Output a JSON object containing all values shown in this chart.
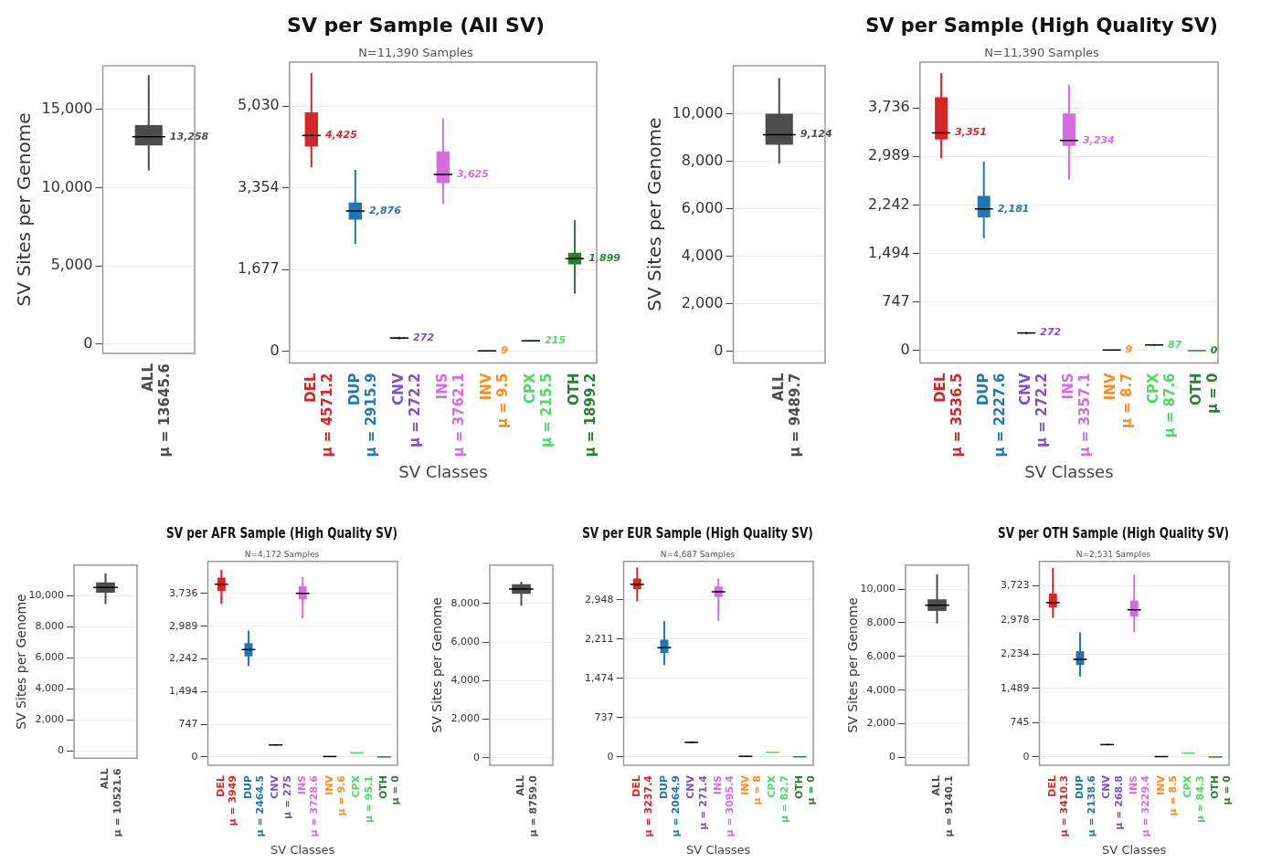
{
  "chart_data": [
    {
      "type": "box",
      "ylabel": "SV Sites per Genome",
      "categories": [
        "ALL"
      ],
      "colors": [
        "#4d4d4d"
      ],
      "grid": "y",
      "boxes": [
        {
          "low": 11100,
          "q1": 12700,
          "median": 13258,
          "q3": 14000,
          "high": 17200
        }
      ],
      "value_labels": [
        "13,258"
      ],
      "annotations": [
        "μ = 13645.6"
      ],
      "ylim": [
        -600,
        17800
      ],
      "yticks": [
        0,
        {
          "value": 5000,
          "label": "5,000"
        },
        {
          "value": 10000,
          "label": "10,000"
        },
        {
          "value": 15000,
          "label": "15,000"
        }
      ]
    },
    {
      "type": "box",
      "title": "SV per Sample (All SV)",
      "subtitle": "N=11,390 Samples",
      "xlabel": "SV Classes",
      "grid": "y",
      "categories": [
        "DEL",
        "DUP",
        "CNV",
        "INS",
        "INV",
        "CPX",
        "OTH"
      ],
      "colors": [
        "#d62728",
        "#1f77b4",
        "#7b52c9",
        "#d46ee0",
        "#ff8c1a",
        "#4cd964",
        "#2e7d32"
      ],
      "boxes": [
        {
          "low": 3770,
          "q1": 4200,
          "median": 4425,
          "q3": 4900,
          "high": 5710
        },
        {
          "low": 2200,
          "q1": 2700,
          "median": 2876,
          "q3": 3050,
          "high": 3720
        },
        {
          "low": 240,
          "q1": 260,
          "median": 272,
          "q3": 285,
          "high": 300
        },
        {
          "low": 3020,
          "q1": 3450,
          "median": 3625,
          "q3": 4100,
          "high": 4770
        },
        {
          "low": 0,
          "q1": 5,
          "median": 9,
          "q3": 14,
          "high": 20
        },
        {
          "low": 200,
          "q1": 210,
          "median": 215,
          "q3": 222,
          "high": 230
        },
        {
          "low": 1180,
          "q1": 1780,
          "median": 1899,
          "q3": 2020,
          "high": 2690
        }
      ],
      "value_labels": [
        "4,425",
        "2,876",
        "272",
        "3,625",
        "9",
        "215",
        "1,899"
      ],
      "annotations": [
        "μ = 4571.2",
        "μ = 2915.9",
        "μ = 272.2",
        "μ = 3762.1",
        "μ = 9.5",
        "μ = 215.5",
        "μ = 1899.2"
      ],
      "ylim": [
        -240,
        5930
      ],
      "yticks": [
        0,
        {
          "value": 1677,
          "label": "1,677"
        },
        {
          "value": 3354,
          "label": "3,354"
        },
        {
          "value": 5030,
          "label": "5,030"
        }
      ]
    },
    {
      "type": "box",
      "ylabel": "SV Sites per Genome",
      "categories": [
        "ALL"
      ],
      "colors": [
        "#4d4d4d"
      ],
      "grid": "y",
      "boxes": [
        {
          "low": 7900,
          "q1": 8700,
          "median": 9124,
          "q3": 10000,
          "high": 11500
        }
      ],
      "value_labels": [
        "9,124"
      ],
      "annotations": [
        "μ = 9489.7"
      ],
      "ylim": [
        -480,
        12020
      ],
      "yticks": [
        0,
        {
          "value": 2000,
          "label": "2,000"
        },
        {
          "value": 4000,
          "label": "4,000"
        },
        {
          "value": 6000,
          "label": "6,000"
        },
        {
          "value": 8000,
          "label": "8,000"
        },
        {
          "value": 10000,
          "label": "10,000"
        }
      ]
    },
    {
      "type": "box",
      "title": "SV per Sample (High Quality SV)",
      "subtitle": "N=11,390 Samples",
      "xlabel": "SV Classes",
      "grid": "y",
      "categories": [
        "DEL",
        "DUP",
        "CNV",
        "INS",
        "INV",
        "CPX",
        "OTH"
      ],
      "colors": [
        "#d62728",
        "#1f77b4",
        "#7b52c9",
        "#d46ee0",
        "#ff8c1a",
        "#4cd964",
        "#2e7d32"
      ],
      "boxes": [
        {
          "low": 2960,
          "q1": 3250,
          "median": 3351,
          "q3": 3900,
          "high": 4270
        },
        {
          "low": 1730,
          "q1": 2050,
          "median": 2181,
          "q3": 2380,
          "high": 2910
        },
        {
          "low": 250,
          "q1": 262,
          "median": 272,
          "q3": 282,
          "high": 290
        },
        {
          "low": 2630,
          "q1": 3150,
          "median": 3234,
          "q3": 3650,
          "high": 4090
        },
        {
          "low": 0,
          "q1": 5,
          "median": 9,
          "q3": 14,
          "high": 20
        },
        {
          "low": 70,
          "q1": 80,
          "median": 87,
          "q3": 95,
          "high": 105
        },
        {
          "low": 0,
          "q1": 0,
          "median": 0,
          "q3": 0,
          "high": 0
        }
      ],
      "value_labels": [
        "3,351",
        "2,181",
        "272",
        "3,234",
        "9",
        "87",
        "0"
      ],
      "annotations": [
        "μ = 3536.5",
        "μ = 2227.6",
        "μ = 272.2",
        "μ = 3357.1",
        "μ = 8.7",
        "μ = 87.6",
        "μ = 0"
      ],
      "ylim": [
        -190,
        4440
      ],
      "yticks": [
        0,
        747,
        {
          "value": 1494,
          "label": "1,494"
        },
        {
          "value": 2242,
          "label": "2,242"
        },
        {
          "value": 2989,
          "label": "2,989"
        },
        {
          "value": 3736,
          "label": "3,736"
        }
      ]
    },
    {
      "type": "box",
      "ylabel": "SV Sites per Genome",
      "categories": [
        "ALL"
      ],
      "colors": [
        "#4d4d4d"
      ],
      "grid": "y",
      "boxes": [
        {
          "low": 9460,
          "q1": 10200,
          "median": 10530,
          "q3": 10850,
          "high": 11440
        }
      ],
      "annotations": [
        "μ = 10521.6"
      ],
      "ylim": [
        -470,
        11970
      ],
      "yticks": [
        0,
        {
          "value": 2000,
          "label": "2,000"
        },
        {
          "value": 4000,
          "label": "4,000"
        },
        {
          "value": 6000,
          "label": "6,000"
        },
        {
          "value": 8000,
          "label": "8,000"
        },
        {
          "value": 10000,
          "label": "10,000"
        }
      ]
    },
    {
      "type": "box",
      "title": "SV per AFR Sample (High Quality SV)",
      "subtitle": "N=4,172 Samples",
      "xlabel": "SV Classes",
      "grid": "y",
      "categories": [
        "DEL",
        "DUP",
        "CNV",
        "INS",
        "INV",
        "CPX",
        "OTH"
      ],
      "colors": [
        "#d62728",
        "#1f77b4",
        "#7b52c9",
        "#d46ee0",
        "#ff8c1a",
        "#4cd964",
        "#2e7d32"
      ],
      "boxes": [
        {
          "low": 3500,
          "q1": 3800,
          "median": 3950,
          "q3": 4100,
          "high": 4280
        },
        {
          "low": 2080,
          "q1": 2300,
          "median": 2455,
          "q3": 2600,
          "high": 2890
        },
        {
          "low": 255,
          "q1": 265,
          "median": 275,
          "q3": 285,
          "high": 295
        },
        {
          "low": 3170,
          "q1": 3600,
          "median": 3740,
          "q3": 3900,
          "high": 4110
        },
        {
          "low": 0,
          "q1": 5,
          "median": 10,
          "q3": 15,
          "high": 20
        },
        {
          "low": 95,
          "q1": 95,
          "median": 95,
          "q3": 95,
          "high": 95
        },
        {
          "low": 0,
          "q1": 0,
          "median": 0,
          "q3": 0,
          "high": 0
        }
      ],
      "annotations": [
        "μ = 3949",
        "μ = 2464.5",
        "μ = 275",
        "μ = 3728.6",
        "μ = 9.6",
        "μ = 95.1",
        "μ = 0"
      ],
      "ylim": [
        -190,
        4470
      ],
      "yticks": [
        0,
        747,
        {
          "value": 1494,
          "label": "1,494"
        },
        {
          "value": 2242,
          "label": "2,242"
        },
        {
          "value": 2989,
          "label": "2,989"
        },
        {
          "value": 3736,
          "label": "3,736"
        }
      ]
    },
    {
      "type": "box",
      "ylabel": "SV Sites per Genome",
      "categories": [
        "ALL"
      ],
      "colors": [
        "#4d4d4d"
      ],
      "grid": "y",
      "boxes": [
        {
          "low": 7880,
          "q1": 8500,
          "median": 8750,
          "q3": 9000,
          "high": 9130
        }
      ],
      "annotations": [
        "μ = 8759.0"
      ],
      "ylim": [
        -390,
        9990
      ],
      "yticks": [
        0,
        {
          "value": 2000,
          "label": "2,000"
        },
        {
          "value": 4000,
          "label": "4,000"
        },
        {
          "value": 6000,
          "label": "6,000"
        },
        {
          "value": 8000,
          "label": "8,000"
        }
      ]
    },
    {
      "type": "box",
      "title": "SV per EUR Sample (High Quality SV)",
      "subtitle": "N=4,687 Samples",
      "xlabel": "SV Classes",
      "grid": "y",
      "categories": [
        "DEL",
        "DUP",
        "CNV",
        "INS",
        "INV",
        "CPX",
        "OTH"
      ],
      "colors": [
        "#d62728",
        "#1f77b4",
        "#7b52c9",
        "#d46ee0",
        "#ff8c1a",
        "#4cd964",
        "#2e7d32"
      ],
      "boxes": [
        {
          "low": 2920,
          "q1": 3150,
          "median": 3240,
          "q3": 3350,
          "high": 3560
        },
        {
          "low": 1720,
          "q1": 1950,
          "median": 2050,
          "q3": 2200,
          "high": 2550
        },
        {
          "low": 250,
          "q1": 262,
          "median": 271,
          "q3": 280,
          "high": 290
        },
        {
          "low": 2550,
          "q1": 3000,
          "median": 3100,
          "q3": 3200,
          "high": 3350
        },
        {
          "low": 0,
          "q1": 4,
          "median": 8,
          "q3": 12,
          "high": 18
        },
        {
          "low": 82,
          "q1": 82,
          "median": 82,
          "q3": 82,
          "high": 82
        },
        {
          "low": 0,
          "q1": 0,
          "median": 0,
          "q3": 0,
          "high": 0
        }
      ],
      "annotations": [
        "μ = 3237.4",
        "μ = 2064.9",
        "μ = 271.4",
        "μ = 3095.4",
        "μ = 8",
        "μ = 82.7",
        "μ = 0"
      ],
      "ylim": [
        -160,
        3670
      ],
      "yticks": [
        0,
        737,
        {
          "value": 1474,
          "label": "1,474"
        },
        {
          "value": 2211,
          "label": "2,211"
        },
        {
          "value": 2948,
          "label": "2,948"
        }
      ]
    },
    {
      "type": "box",
      "ylabel": "SV Sites per Genome",
      "categories": [
        "ALL"
      ],
      "colors": [
        "#4d4d4d"
      ],
      "grid": "y",
      "boxes": [
        {
          "low": 7960,
          "q1": 8700,
          "median": 9045,
          "q3": 9400,
          "high": 10890
        }
      ],
      "annotations": [
        "μ = 9140.1"
      ],
      "ylim": [
        -470,
        11430
      ],
      "yticks": [
        0,
        {
          "value": 2000,
          "label": "2,000"
        },
        {
          "value": 4000,
          "label": "4,000"
        },
        {
          "value": 6000,
          "label": "6,000"
        },
        {
          "value": 8000,
          "label": "8,000"
        },
        {
          "value": 10000,
          "label": "10,000"
        }
      ]
    },
    {
      "type": "box",
      "title": "SV per OTH Sample (High Quality SV)",
      "subtitle": "N=2,531 Samples",
      "xlabel": "SV Classes",
      "grid": "y",
      "categories": [
        "DEL",
        "DUP",
        "CNV",
        "INS",
        "INV",
        "CPX",
        "OTH"
      ],
      "colors": [
        "#d62728",
        "#1f77b4",
        "#7b52c9",
        "#d46ee0",
        "#ff8c1a",
        "#4cd964",
        "#2e7d32"
      ],
      "boxes": [
        {
          "low": 3025,
          "q1": 3250,
          "median": 3356,
          "q3": 3550,
          "high": 4110
        },
        {
          "low": 1750,
          "q1": 2000,
          "median": 2122,
          "q3": 2300,
          "high": 2710
        },
        {
          "low": 250,
          "q1": 260,
          "median": 269,
          "q3": 278,
          "high": 288
        },
        {
          "low": 2710,
          "q1": 3050,
          "median": 3200,
          "q3": 3400,
          "high": 3960
        },
        {
          "low": 0,
          "q1": 4,
          "median": 8,
          "q3": 12,
          "high": 18
        },
        {
          "low": 84,
          "q1": 84,
          "median": 84,
          "q3": 84,
          "high": 84
        },
        {
          "low": 0,
          "q1": 0,
          "median": 0,
          "q3": 0,
          "high": 0
        }
      ],
      "annotations": [
        "μ = 3410.3",
        "μ = 2138.6",
        "μ = 268.8",
        "μ = 3229.4",
        "μ = 8.5",
        "μ = 84.3",
        "μ = 0"
      ],
      "ylim": [
        -180,
        4250
      ],
      "yticks": [
        0,
        745,
        {
          "value": 1489,
          "label": "1,489"
        },
        {
          "value": 2234,
          "label": "2,234"
        },
        {
          "value": 2978,
          "label": "2,978"
        },
        {
          "value": 3723,
          "label": "3,723"
        }
      ]
    }
  ]
}
